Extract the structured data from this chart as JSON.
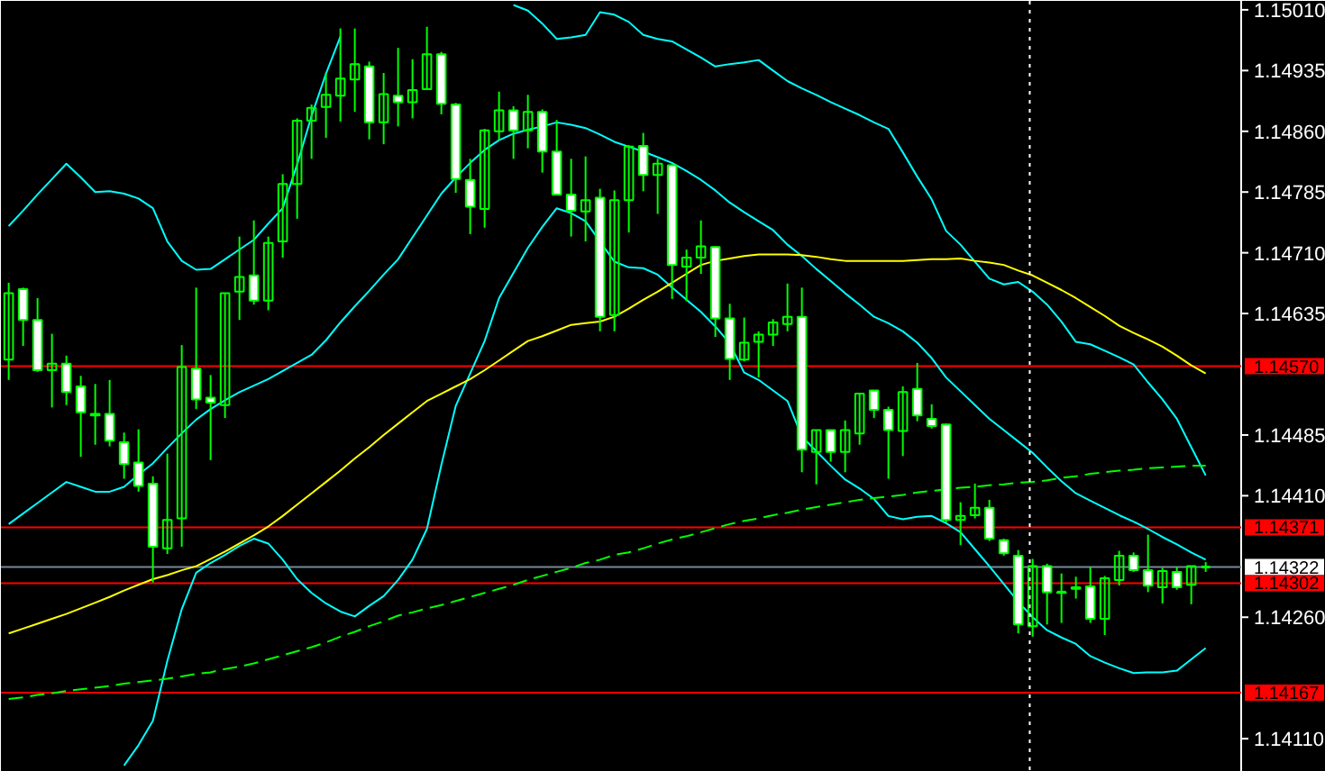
{
  "chart_data": {
    "type": "candlestick",
    "color": "#00ff00",
    "categories": [
      null,
      null,
      null,
      null,
      null,
      null,
      null,
      null,
      null,
      null,
      null,
      null,
      null,
      null,
      null,
      null,
      null,
      null,
      null,
      null,
      null,
      null,
      null,
      null,
      null,
      null,
      null,
      null,
      null,
      null,
      null,
      null,
      null,
      null,
      null,
      null,
      null,
      null,
      null,
      null,
      null,
      null,
      null,
      null,
      null,
      null,
      null,
      null,
      null,
      null,
      null,
      null,
      null,
      null,
      null,
      null,
      null,
      null,
      null,
      null,
      null,
      null,
      null,
      null,
      null,
      null,
      null,
      null,
      null,
      null,
      null,
      null,
      null,
      null,
      null,
      null,
      null,
      null,
      null,
      null,
      null,
      null,
      null,
      null
    ],
    "ohlc": [
      [
        1.14578,
        1.14673,
        1.14553,
        1.1466
      ],
      [
        1.14665,
        1.14667,
        1.14595,
        1.14627
      ],
      [
        1.14627,
        1.14654,
        1.14563,
        1.14565
      ],
      [
        1.14565,
        1.1461,
        1.14519,
        1.14573
      ],
      [
        1.14573,
        1.14583,
        1.14522,
        1.14538
      ],
      [
        1.14545,
        1.14558,
        1.14458,
        1.14513
      ],
      [
        1.14511,
        1.14548,
        1.14473,
        1.14509
      ],
      [
        1.14511,
        1.14553,
        1.14471,
        1.14478
      ],
      [
        1.14476,
        1.14488,
        1.14431,
        1.14449
      ],
      [
        1.14451,
        1.14492,
        1.14415,
        1.14422
      ],
      [
        1.14425,
        1.14434,
        1.14303,
        1.14347
      ],
      [
        1.14345,
        1.14462,
        1.14338,
        1.1438
      ],
      [
        1.14382,
        1.14596,
        1.14347,
        1.14569
      ],
      [
        1.14567,
        1.14667,
        1.14517,
        1.14529
      ],
      [
        1.14531,
        1.14559,
        1.14454,
        1.14525
      ],
      [
        1.14522,
        1.1466,
        1.14506,
        1.1466
      ],
      [
        1.14662,
        1.1473,
        1.14627,
        1.1468
      ],
      [
        1.14682,
        1.1475,
        1.14646,
        1.14651
      ],
      [
        1.14651,
        1.1473,
        1.14639,
        1.14722
      ],
      [
        1.14724,
        1.14807,
        1.14704,
        1.14795
      ],
      [
        1.14795,
        1.14876,
        1.14752,
        1.14873
      ],
      [
        1.14873,
        1.14893,
        1.14826,
        1.14889
      ],
      [
        1.1489,
        1.14932,
        1.14852,
        1.14905
      ],
      [
        1.14904,
        1.14987,
        1.14872,
        1.14925
      ],
      [
        1.14924,
        1.14987,
        1.14884,
        1.14943
      ],
      [
        1.1494,
        1.14946,
        1.1485,
        1.14871
      ],
      [
        1.14871,
        1.14932,
        1.14844,
        1.14906
      ],
      [
        1.14904,
        1.14963,
        1.14866,
        1.14896
      ],
      [
        1.14896,
        1.14949,
        1.14876,
        1.14911
      ],
      [
        1.14912,
        1.14989,
        1.14911,
        1.14955
      ],
      [
        1.14955,
        1.14958,
        1.14881,
        1.14894
      ],
      [
        1.14893,
        1.14895,
        1.14784,
        1.14801
      ],
      [
        1.148,
        1.14826,
        1.14733,
        1.14767
      ],
      [
        1.14764,
        1.14863,
        1.14741,
        1.14861
      ],
      [
        1.1486,
        1.14909,
        1.14849,
        1.14886
      ],
      [
        1.14886,
        1.14891,
        1.14826,
        1.14861
      ],
      [
        1.14861,
        1.14905,
        1.14839,
        1.14884
      ],
      [
        1.14884,
        1.14887,
        1.14809,
        1.14835
      ],
      [
        1.14835,
        1.14874,
        1.14781,
        1.14782
      ],
      [
        1.14782,
        1.14826,
        1.1473,
        1.14762
      ],
      [
        1.14761,
        1.14829,
        1.14724,
        1.14775
      ],
      [
        1.14778,
        1.14789,
        1.14613,
        1.14631
      ],
      [
        1.14633,
        1.14787,
        1.14613,
        1.14775
      ],
      [
        1.14775,
        1.14843,
        1.14735,
        1.14841
      ],
      [
        1.14842,
        1.14858,
        1.14786,
        1.14806
      ],
      [
        1.14806,
        1.14826,
        1.14758,
        1.1482
      ],
      [
        1.14818,
        1.14819,
        1.14653,
        1.14695
      ],
      [
        1.14693,
        1.14714,
        1.1465,
        1.14704
      ],
      [
        1.14704,
        1.1475,
        1.14684,
        1.14718
      ],
      [
        1.14717,
        1.14718,
        1.14606,
        1.14629
      ],
      [
        1.14629,
        1.14647,
        1.14553,
        1.14579
      ],
      [
        1.14578,
        1.1463,
        1.14576,
        1.14599
      ],
      [
        1.146,
        1.14613,
        1.14556,
        1.14609
      ],
      [
        1.14609,
        1.14628,
        1.14595,
        1.14624
      ],
      [
        1.14622,
        1.14672,
        1.14613,
        1.14631
      ],
      [
        1.14631,
        1.14667,
        1.14439,
        1.14467
      ],
      [
        1.14464,
        1.14491,
        1.14424,
        1.14491
      ],
      [
        1.14491,
        1.14491,
        1.14452,
        1.14464
      ],
      [
        1.14464,
        1.14503,
        1.14439,
        1.14491
      ],
      [
        1.14487,
        1.14536,
        1.14473,
        1.14536
      ],
      [
        1.1454,
        1.1454,
        1.14506,
        1.14516
      ],
      [
        1.14516,
        1.1452,
        1.14431,
        1.14491
      ],
      [
        1.1449,
        1.14545,
        1.14459,
        1.14538
      ],
      [
        1.14542,
        1.14574,
        1.14502,
        1.14509
      ],
      [
        1.14505,
        1.14523,
        1.14493,
        1.14496
      ],
      [
        1.14498,
        1.14499,
        1.14377,
        1.1438
      ],
      [
        1.1438,
        1.14402,
        1.14349,
        1.14385
      ],
      [
        1.14386,
        1.14425,
        1.14382,
        1.14395
      ],
      [
        1.14395,
        1.14405,
        1.14354,
        1.14357
      ],
      [
        1.14355,
        1.14357,
        1.14336,
        1.14339
      ],
      [
        1.14336,
        1.14343,
        1.1424,
        1.14251
      ],
      [
        1.14249,
        1.14332,
        1.14236,
        1.14323
      ],
      [
        1.14323,
        1.14326,
        1.14251,
        1.14291
      ],
      [
        1.14291,
        1.14314,
        1.14253,
        1.1429
      ],
      [
        1.14297,
        1.1431,
        1.14283,
        1.14295
      ],
      [
        1.14298,
        1.14322,
        1.14253,
        1.14258
      ],
      [
        1.14258,
        1.14311,
        1.14238,
        1.14308
      ],
      [
        1.14306,
        1.14342,
        1.14299,
        1.14336
      ],
      [
        1.14336,
        1.1434,
        1.14316,
        1.14318
      ],
      [
        1.14318,
        1.14362,
        1.14291,
        1.14299
      ],
      [
        1.14297,
        1.14321,
        1.14277,
        1.14317
      ],
      [
        1.14316,
        1.14322,
        1.14294,
        1.14297
      ],
      [
        1.143,
        1.14323,
        1.14276,
        1.14323
      ],
      [
        1.14322,
        1.14328,
        1.14316,
        1.14322
      ]
    ],
    "series": [
      {
        "type": "line",
        "color": "#00ffff",
        "line_style": "solid",
        "values": [
          1.14743,
          1.14762,
          1.14782,
          1.14801,
          1.1482,
          1.14803,
          1.14785,
          1.14786,
          1.14783,
          1.14777,
          1.14765,
          1.14724,
          1.147,
          1.14689,
          1.1469,
          1.14702,
          1.14714,
          1.14726,
          1.14746,
          1.14765,
          1.14819,
          1.14879,
          1.14931,
          1.14977,
          null,
          null,
          null,
          null,
          null,
          null,
          null,
          null,
          null,
          null,
          null,
          1.15016,
          1.15009,
          1.14993,
          1.14974,
          1.14976,
          1.14979,
          1.15007,
          1.15004,
          1.14995,
          1.14979,
          1.14974,
          1.14971,
          1.14961,
          1.14951,
          1.1494,
          1.14943,
          1.14945,
          1.14948,
          1.14935,
          1.14922,
          1.14913,
          1.14905,
          1.14896,
          1.14888,
          1.1488,
          1.14871,
          1.14863,
          1.14834,
          1.14804,
          1.14776,
          1.14737,
          1.1472,
          1.14699,
          1.14678,
          1.14671,
          1.14674,
          1.14662,
          1.14646,
          1.14625,
          1.146,
          1.14597,
          1.14589,
          1.14581,
          1.14572,
          1.1455,
          1.14529,
          1.14505,
          1.1447,
          1.14435
        ]
      },
      {
        "type": "line",
        "color": "#00ffff",
        "line_style": "solid",
        "values": [
          1.14375,
          1.14388,
          1.14401,
          1.14414,
          1.14427,
          1.14421,
          1.14415,
          1.14415,
          1.14421,
          1.14436,
          1.1445,
          1.14469,
          1.14487,
          1.14504,
          1.14517,
          1.14528,
          1.14538,
          1.14546,
          1.14554,
          1.14564,
          1.14574,
          1.14584,
          1.14602,
          1.14624,
          1.14644,
          1.14663,
          1.14683,
          1.14702,
          1.14729,
          1.14756,
          1.14783,
          1.14803,
          1.14821,
          1.14837,
          1.14849,
          1.14857,
          1.14862,
          1.14866,
          1.14871,
          1.14868,
          1.14864,
          1.14856,
          1.14847,
          1.14841,
          1.14835,
          1.14828,
          1.14821,
          1.14811,
          1.148,
          1.14787,
          1.14772,
          1.1476,
          1.14749,
          1.14738,
          1.1472,
          1.14706,
          1.1469,
          1.14675,
          1.1466,
          1.14646,
          1.14631,
          1.14623,
          1.14613,
          1.14599,
          1.1458,
          1.14556,
          1.14539,
          1.14522,
          1.14505,
          1.14491,
          1.14477,
          1.14463,
          1.14445,
          1.14428,
          1.14413,
          1.14404,
          1.14395,
          1.14386,
          1.14378,
          1.14369,
          1.14359,
          1.1435,
          1.1434,
          1.14331
        ]
      },
      {
        "type": "line",
        "color": "#00ffff",
        "line_style": "solid",
        "values": [
          null,
          null,
          null,
          null,
          null,
          null,
          null,
          null,
          1.14077,
          1.14102,
          1.14132,
          1.14206,
          1.1427,
          1.14315,
          1.14327,
          1.14337,
          1.14348,
          1.14357,
          1.14351,
          1.14331,
          1.14307,
          1.1429,
          1.14277,
          1.14267,
          1.14261,
          1.14274,
          1.14286,
          1.14306,
          1.14331,
          1.14369,
          1.14448,
          1.14521,
          1.14561,
          1.14601,
          1.14654,
          1.14685,
          1.14716,
          1.14742,
          1.14765,
          1.14759,
          1.14749,
          1.14724,
          1.14699,
          1.14692,
          1.14691,
          1.14683,
          1.14667,
          1.14652,
          1.14637,
          1.14619,
          1.14598,
          1.14562,
          1.14553,
          1.1454,
          1.14527,
          1.14483,
          1.14465,
          1.14447,
          1.1443,
          1.14419,
          1.14406,
          1.14385,
          1.14381,
          1.14384,
          1.14385,
          1.14376,
          1.14365,
          1.14344,
          1.14323,
          1.14301,
          1.14279,
          1.1426,
          1.14244,
          1.14235,
          1.14227,
          1.14212,
          1.14204,
          1.14197,
          1.14191,
          1.14192,
          1.14192,
          1.14194,
          1.14208,
          1.14222
        ]
      },
      {
        "type": "line",
        "color": "#ffff00",
        "line_style": "solid",
        "values": [
          1.1424,
          1.14246,
          1.14252,
          1.14258,
          1.14264,
          1.14271,
          1.14278,
          1.14285,
          1.14293,
          1.143,
          1.14307,
          1.14312,
          1.14318,
          1.14323,
          1.14332,
          1.14341,
          1.14351,
          1.14361,
          1.14372,
          1.14385,
          1.14399,
          1.14413,
          1.14427,
          1.14441,
          1.14456,
          1.1447,
          1.14485,
          1.14499,
          1.14513,
          1.14527,
          1.14536,
          1.14545,
          1.14554,
          1.14565,
          1.14577,
          1.14589,
          1.14601,
          1.14607,
          1.14614,
          1.14621,
          1.14623,
          1.14625,
          1.14631,
          1.14641,
          1.14652,
          1.14662,
          1.14673,
          1.14684,
          1.14695,
          1.147,
          1.14703,
          1.14706,
          1.14708,
          1.14708,
          1.14708,
          1.14707,
          1.14705,
          1.14702,
          1.147,
          1.147,
          1.147,
          1.147,
          1.147,
          1.14701,
          1.14702,
          1.14702,
          1.14703,
          1.147,
          1.14698,
          1.14695,
          1.14688,
          1.14682,
          1.14673,
          1.14664,
          1.14654,
          1.14643,
          1.14632,
          1.1462,
          1.14611,
          1.14603,
          1.14594,
          1.14583,
          1.14571,
          1.14561
        ]
      },
      {
        "type": "line",
        "color": "#00ff00",
        "line_style": "dashed",
        "values": [
          1.14159,
          1.14161,
          1.14164,
          1.14166,
          1.14169,
          1.14171,
          1.14173,
          1.14175,
          1.14178,
          1.1418,
          1.14182,
          1.14184,
          1.14187,
          1.1419,
          1.14192,
          1.14196,
          1.14199,
          1.14203,
          1.14208,
          1.14213,
          1.14218,
          1.14223,
          1.14229,
          1.14236,
          1.14242,
          1.14249,
          1.14255,
          1.14262,
          1.14266,
          1.14271,
          1.14275,
          1.1428,
          1.14285,
          1.1429,
          1.14295,
          1.143,
          1.14306,
          1.14311,
          1.14316,
          1.14321,
          1.14327,
          1.14331,
          1.14337,
          1.1434,
          1.14345,
          1.14351,
          1.14356,
          1.1436,
          1.14365,
          1.1437,
          1.14375,
          1.14379,
          1.14382,
          1.14386,
          1.14389,
          1.14393,
          1.14396,
          1.14399,
          1.14402,
          1.14405,
          1.14407,
          1.14409,
          1.14411,
          1.14414,
          1.14416,
          1.14418,
          1.1442,
          1.14421,
          1.14423,
          1.14424,
          1.14426,
          1.14427,
          1.14429,
          1.14432,
          1.14434,
          1.14437,
          1.14439,
          1.14441,
          1.14442,
          1.14444,
          1.14445,
          1.14446,
          1.14447,
          1.14447
        ]
      }
    ],
    "ref_lines": [
      {
        "axis": "y",
        "value": 1.1457,
        "label": "1.14570",
        "color": "#ff0000"
      },
      {
        "axis": "y",
        "value": 1.14371,
        "label": "1.14371",
        "color": "#ff0000"
      },
      {
        "axis": "y",
        "value": 1.14322,
        "label": "1.14322",
        "color": "#778899"
      },
      {
        "axis": "y",
        "value": 1.14302,
        "label": "1.14302",
        "color": "#ff0000"
      },
      {
        "axis": "y",
        "value": 1.14167,
        "label": "1.14167",
        "color": "#ff0000"
      }
    ],
    "ylim": [
      1.14069,
      1.15021
    ],
    "yticks": [
      {
        "value": 1.1501,
        "label": "1.15010"
      },
      1.14935,
      {
        "value": 1.1486,
        "label": "1.14860"
      },
      1.14785,
      {
        "value": 1.1471,
        "label": "1.14710"
      },
      1.14635,
      1.14485,
      {
        "value": 1.1441,
        "label": "1.14410"
      },
      {
        "value": 1.1426,
        "label": "1.14260"
      },
      {
        "value": 1.1411,
        "label": "1.14110"
      }
    ],
    "tick_labels": "y",
    "grid": false
  }
}
